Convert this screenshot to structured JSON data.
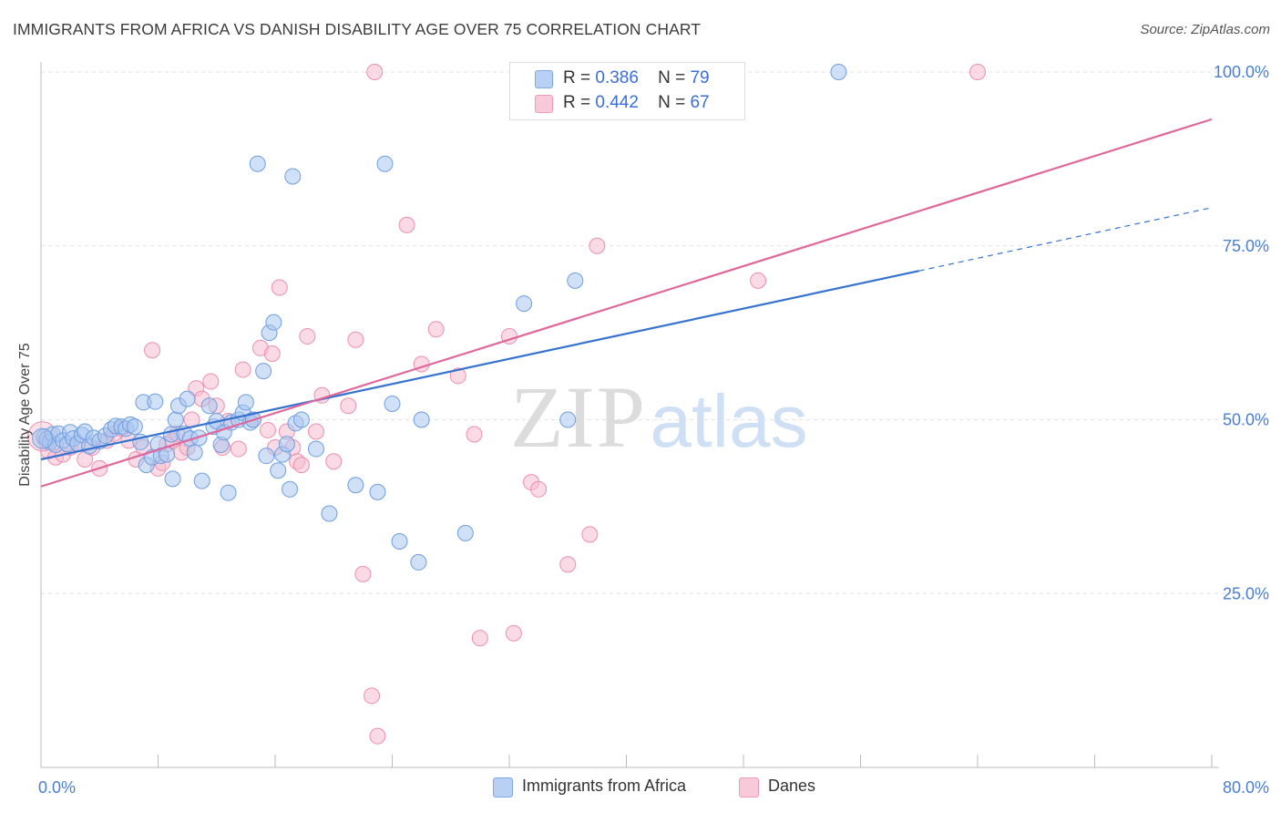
{
  "header": {
    "title": "IMMIGRANTS FROM AFRICA VS DANISH DISABILITY AGE OVER 75 CORRELATION CHART",
    "source": "Source: ZipAtlas.com"
  },
  "watermark": {
    "zip": "ZIP",
    "atlas": "atlas"
  },
  "legend": {
    "series": [
      {
        "r_label": "R =",
        "r_value": "0.386",
        "n_label": "N =",
        "n_value": "79"
      },
      {
        "r_label": "R =",
        "r_value": "0.442",
        "n_label": "N =",
        "n_value": "67"
      }
    ]
  },
  "bottom_legend": {
    "items": [
      {
        "label": "Immigrants from Africa"
      },
      {
        "label": "Danes"
      }
    ]
  },
  "chart_data": {
    "type": "scatter",
    "title": "IMMIGRANTS FROM AFRICA VS DANISH DISABILITY AGE OVER 75 CORRELATION CHART",
    "xlabel": "",
    "ylabel": "Disability Age Over 75",
    "xlim": [
      0,
      80
    ],
    "ylim": [
      0,
      100
    ],
    "x_tick_labels": [
      "0.0%",
      "80.0%"
    ],
    "y_tick_labels": [
      "100.0%",
      "75.0%",
      "50.0%",
      "25.0%"
    ],
    "y_ticks": [
      100,
      75,
      50,
      25
    ],
    "grid": true,
    "colors": {
      "blue_fill": "#a9c6f0",
      "blue_stroke": "#6f9ee0",
      "blue_line": "#3673d0",
      "pink_fill": "#f6bdd0",
      "pink_stroke": "#ec8fae",
      "pink_line": "#e0679a",
      "axis_label": "#4a7fd4",
      "grid": "#e2e2e2"
    },
    "series": [
      {
        "name": "Immigrants from Africa",
        "color": "#a9c6f0",
        "r": 0.386,
        "n": 79,
        "trend": {
          "x": [
            0,
            60
          ],
          "y": [
            44.3,
            71.4
          ],
          "dashed_to": [
            80,
            80.5
          ]
        },
        "points": [
          [
            0.2,
            47.5
          ],
          [
            0.4,
            47.2
          ],
          [
            0.6,
            46.8
          ],
          [
            0.8,
            47.9
          ],
          [
            1.0,
            46.4
          ],
          [
            1.2,
            48.0
          ],
          [
            1.5,
            47.0
          ],
          [
            1.8,
            46.5
          ],
          [
            2.0,
            48.2
          ],
          [
            2.2,
            47.3
          ],
          [
            2.5,
            46.6
          ],
          [
            2.8,
            47.8
          ],
          [
            3.0,
            48.3
          ],
          [
            3.3,
            46.2
          ],
          [
            3.6,
            47.4
          ],
          [
            4.0,
            46.9
          ],
          [
            4.4,
            47.7
          ],
          [
            4.8,
            48.6
          ],
          [
            5.1,
            49.1
          ],
          [
            5.5,
            49.0
          ],
          [
            5.8,
            48.7
          ],
          [
            6.1,
            49.3
          ],
          [
            6.4,
            49.0
          ],
          [
            6.8,
            46.8
          ],
          [
            7.0,
            52.5
          ],
          [
            7.2,
            43.5
          ],
          [
            7.6,
            44.6
          ],
          [
            7.8,
            52.6
          ],
          [
            8.0,
            46.5
          ],
          [
            8.2,
            44.8
          ],
          [
            8.6,
            45.0
          ],
          [
            8.9,
            47.9
          ],
          [
            9.0,
            41.5
          ],
          [
            9.2,
            50.0
          ],
          [
            9.4,
            52.0
          ],
          [
            9.8,
            48.0
          ],
          [
            10.0,
            53.0
          ],
          [
            10.2,
            47.3
          ],
          [
            10.5,
            45.3
          ],
          [
            10.8,
            47.4
          ],
          [
            11.0,
            41.2
          ],
          [
            11.5,
            52.0
          ],
          [
            11.8,
            49.0
          ],
          [
            12.0,
            49.8
          ],
          [
            12.3,
            46.4
          ],
          [
            12.5,
            48.2
          ],
          [
            12.8,
            39.5
          ],
          [
            13.0,
            49.6
          ],
          [
            13.5,
            50.0
          ],
          [
            13.8,
            51.0
          ],
          [
            14.0,
            52.5
          ],
          [
            14.3,
            49.6
          ],
          [
            14.5,
            50.0
          ],
          [
            14.8,
            86.8
          ],
          [
            15.2,
            57.0
          ],
          [
            15.4,
            44.8
          ],
          [
            15.6,
            62.5
          ],
          [
            15.9,
            64.0
          ],
          [
            16.2,
            42.7
          ],
          [
            16.5,
            45.0
          ],
          [
            16.8,
            46.5
          ],
          [
            17.0,
            40.0
          ],
          [
            17.2,
            85.0
          ],
          [
            17.4,
            49.5
          ],
          [
            17.8,
            50.0
          ],
          [
            18.8,
            45.8
          ],
          [
            19.7,
            36.5
          ],
          [
            21.5,
            40.6
          ],
          [
            23.0,
            39.6
          ],
          [
            23.5,
            86.8
          ],
          [
            24.0,
            52.3
          ],
          [
            24.5,
            32.5
          ],
          [
            25.8,
            29.5
          ],
          [
            26.0,
            50.0
          ],
          [
            29.0,
            33.7
          ],
          [
            33.0,
            66.7
          ],
          [
            36.0,
            50.0
          ],
          [
            36.5,
            70.0
          ],
          [
            54.5,
            100.0
          ]
        ]
      },
      {
        "name": "Danes",
        "color": "#f6bdd0",
        "r": 0.442,
        "n": 67,
        "trend": {
          "x": [
            0,
            80
          ],
          "y": [
            40.4,
            93.2
          ]
        },
        "points": [
          [
            0.3,
            47.0
          ],
          [
            0.5,
            45.5
          ],
          [
            1.0,
            44.6
          ],
          [
            1.5,
            45.0
          ],
          [
            2.0,
            46.0
          ],
          [
            2.5,
            46.5
          ],
          [
            3.0,
            44.3
          ],
          [
            3.5,
            46.0
          ],
          [
            4.0,
            43.0
          ],
          [
            4.5,
            47.0
          ],
          [
            5.0,
            48.0
          ],
          [
            5.5,
            48.7
          ],
          [
            6.0,
            47.0
          ],
          [
            6.5,
            44.3
          ],
          [
            7.0,
            46.0
          ],
          [
            7.6,
            60.0
          ],
          [
            8.0,
            43.0
          ],
          [
            8.3,
            43.8
          ],
          [
            8.6,
            46.5
          ],
          [
            9.0,
            47.0
          ],
          [
            9.3,
            48.0
          ],
          [
            9.6,
            45.3
          ],
          [
            10.0,
            46.0
          ],
          [
            10.3,
            50.0
          ],
          [
            10.6,
            54.5
          ],
          [
            11.0,
            53.0
          ],
          [
            11.6,
            55.5
          ],
          [
            12.0,
            52.0
          ],
          [
            12.4,
            46.0
          ],
          [
            12.8,
            49.8
          ],
          [
            13.5,
            45.8
          ],
          [
            13.8,
            57.2
          ],
          [
            14.5,
            50.0
          ],
          [
            15.0,
            60.3
          ],
          [
            15.5,
            48.5
          ],
          [
            15.8,
            59.5
          ],
          [
            16.0,
            46.0
          ],
          [
            16.3,
            69.0
          ],
          [
            16.8,
            48.3
          ],
          [
            17.2,
            46.0
          ],
          [
            17.5,
            44.0
          ],
          [
            17.8,
            43.5
          ],
          [
            18.2,
            62.0
          ],
          [
            18.8,
            48.3
          ],
          [
            19.2,
            53.5
          ],
          [
            20.0,
            44.0
          ],
          [
            21.0,
            52.0
          ],
          [
            21.5,
            61.5
          ],
          [
            22.0,
            27.8
          ],
          [
            22.6,
            10.3
          ],
          [
            22.8,
            100.0
          ],
          [
            23.0,
            4.5
          ],
          [
            25.0,
            78.0
          ],
          [
            26.0,
            58.0
          ],
          [
            27.0,
            63.0
          ],
          [
            28.5,
            56.3
          ],
          [
            29.6,
            47.9
          ],
          [
            30.0,
            18.6
          ],
          [
            32.0,
            62.0
          ],
          [
            32.3,
            19.3
          ],
          [
            33.5,
            41.0
          ],
          [
            34.0,
            40.0
          ],
          [
            36.0,
            29.2
          ],
          [
            37.5,
            33.5
          ],
          [
            38.0,
            75.0
          ],
          [
            49.0,
            70.0
          ],
          [
            64.0,
            100.0
          ]
        ]
      }
    ]
  }
}
